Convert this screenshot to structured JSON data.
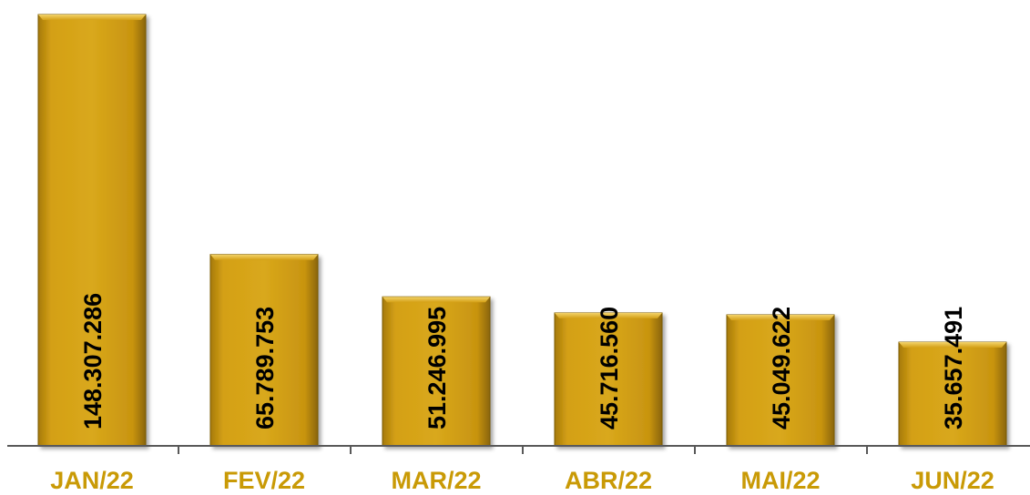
{
  "chart_data": {
    "type": "bar",
    "title": "",
    "xlabel": "",
    "ylabel": "",
    "categories": [
      "JAN/22",
      "FEV/22",
      "MAR/22",
      "ABR/22",
      "MAI/22",
      "JUN/22"
    ],
    "values": [
      148307286,
      65789753,
      51246995,
      45716560,
      45049622,
      35657491
    ],
    "data_labels": [
      "148.307.286",
      "65.789.753",
      "51.246.995",
      "45.716.560",
      "45.049.622",
      "35.657.491"
    ],
    "ylim": [
      0,
      148307286
    ],
    "grid": false,
    "legend": "none",
    "colors": {
      "bar": "#D4A017",
      "bar_light": "#E7BC2E",
      "bar_dark": "#8A6508",
      "category_label": "#C99A06",
      "data_label": "#000000",
      "axis": "#595959"
    }
  }
}
